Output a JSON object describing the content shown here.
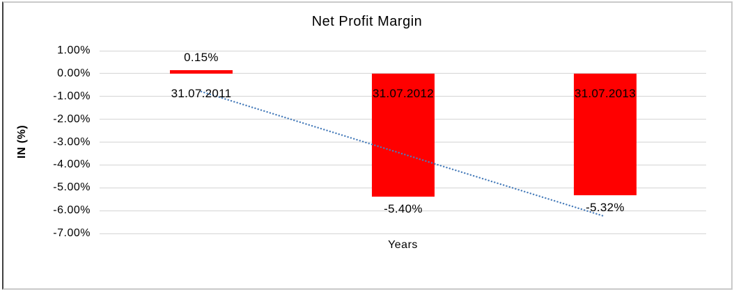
{
  "chart_data": {
    "type": "bar",
    "title": "Net Profit Margin",
    "xlabel": "Years",
    "ylabel": "IN (%)",
    "categories": [
      "31.07.2011",
      "31.07.2012",
      "31.07.2013"
    ],
    "values": [
      0.15,
      -5.4,
      -5.32
    ],
    "value_labels": [
      "0.15%",
      "-5.40%",
      "-5.32%"
    ],
    "ytick_values": [
      1,
      0,
      -1,
      -2,
      -3,
      -4,
      -5,
      -6,
      -7
    ],
    "ytick_labels": [
      "1.00%",
      "0.00%",
      "-1.00%",
      "-2.00%",
      "-3.00%",
      "-4.00%",
      "-5.00%",
      "-6.00%",
      "-7.00%"
    ],
    "ylim": [
      -7,
      1
    ],
    "grid": true,
    "legend": "none",
    "trendline": {
      "type": "linear",
      "style": "dotted"
    },
    "colors": {
      "bar": "#ff0000",
      "trendline": "#4a7ebb",
      "gridline": "#d4d4d4",
      "text": "#000000",
      "frame_left": "#3f3f3f",
      "frame_gray": "#c9c9c9"
    }
  }
}
